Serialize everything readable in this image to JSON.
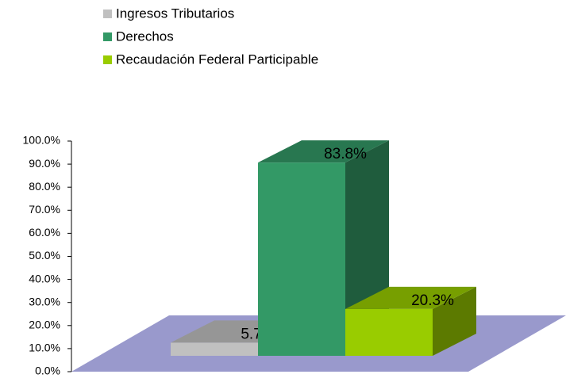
{
  "chart_data": {
    "type": "bar3d",
    "series": [
      {
        "name": "Ingresos Tributarios",
        "color": "#c0c0c0",
        "values": [
          5.7
        ],
        "value_labels": [
          "5.7%"
        ]
      },
      {
        "name": "Derechos",
        "color": "#339966",
        "values": [
          83.8
        ],
        "value_labels": [
          "83.8%"
        ]
      },
      {
        "name": "Recaudación Federal Participable",
        "color": "#99cc00",
        "values": [
          20.3
        ],
        "value_labels": [
          "20.3%"
        ]
      }
    ],
    "ylim": [
      0,
      100
    ],
    "yticks": [
      {
        "value": 0,
        "label": "0.0%"
      },
      {
        "value": 10,
        "label": "10.0%"
      },
      {
        "value": 20,
        "label": "20.0%"
      },
      {
        "value": 30,
        "label": "30.0%"
      },
      {
        "value": 40,
        "label": "40.0%"
      },
      {
        "value": 50,
        "label": "50.0%"
      },
      {
        "value": 60,
        "label": "60.0%"
      },
      {
        "value": 70,
        "label": "70.0%"
      },
      {
        "value": 80,
        "label": "80.0%"
      },
      {
        "value": 90,
        "label": "90.0%"
      },
      {
        "value": 100,
        "label": "100.0%"
      }
    ],
    "legend": "top"
  }
}
